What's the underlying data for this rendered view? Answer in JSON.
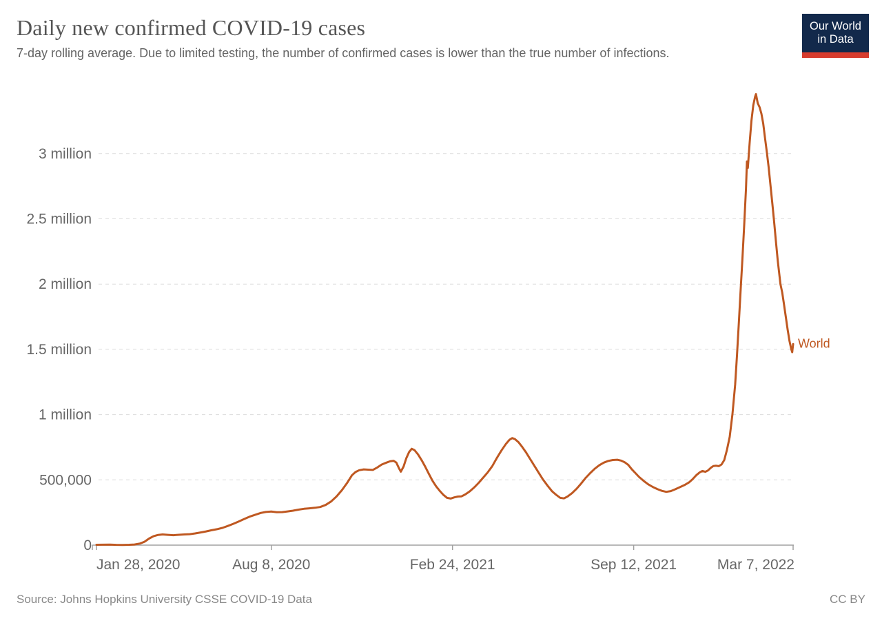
{
  "header": {
    "title": "Daily new confirmed COVID-19 cases",
    "subtitle": "7-day rolling average. Due to limited testing, the number of confirmed cases is lower than the true number of infections."
  },
  "logo": {
    "line1": "Our World",
    "line2": "in Data",
    "navy": "#12294b",
    "red": "#d73c2e"
  },
  "footer": {
    "source": "Source: Johns Hopkins University CSSE COVID-19 Data",
    "license": "CC BY"
  },
  "chart_data": {
    "type": "line",
    "title": "Daily new confirmed COVID-19 cases",
    "subtitle": "7-day rolling average",
    "xlabel": "",
    "ylabel": "",
    "grid": "dashed horizontal",
    "legend_position": "end-of-line",
    "x_domain": [
      "2020-01-28",
      "2022-03-07"
    ],
    "y_range": [
      0,
      3500000
    ],
    "x_ticks": [
      {
        "date": "2020-01-28",
        "label": "Jan 28, 2020"
      },
      {
        "date": "2020-08-08",
        "label": "Aug 8, 2020"
      },
      {
        "date": "2021-02-24",
        "label": "Feb 24, 2021"
      },
      {
        "date": "2021-09-12",
        "label": "Sep 12, 2021"
      },
      {
        "date": "2022-03-07",
        "label": "Mar 7, 2022"
      }
    ],
    "y_ticks": [
      {
        "value": 0,
        "label": "0"
      },
      {
        "value": 500000,
        "label": "500,000"
      },
      {
        "value": 1000000,
        "label": "1 million"
      },
      {
        "value": 1500000,
        "label": "1.5 million"
      },
      {
        "value": 2000000,
        "label": "2 million"
      },
      {
        "value": 2500000,
        "label": "2.5 million"
      },
      {
        "value": 3000000,
        "label": "3 million"
      }
    ],
    "series": [
      {
        "name": "World",
        "color": "#bf5821",
        "points": [
          [
            "2020-01-28",
            2600
          ],
          [
            "2020-02-04",
            3400
          ],
          [
            "2020-02-12",
            4200
          ],
          [
            "2020-02-19",
            2300
          ],
          [
            "2020-02-26",
            1800
          ],
          [
            "2020-03-04",
            2600
          ],
          [
            "2020-03-10",
            5000
          ],
          [
            "2020-03-16",
            12000
          ],
          [
            "2020-03-21",
            26000
          ],
          [
            "2020-03-26",
            50000
          ],
          [
            "2020-03-31",
            68000
          ],
          [
            "2020-04-05",
            78000
          ],
          [
            "2020-04-10",
            82000
          ],
          [
            "2020-04-16",
            78500
          ],
          [
            "2020-04-22",
            76000
          ],
          [
            "2020-04-28",
            79000
          ],
          [
            "2020-05-04",
            82000
          ],
          [
            "2020-05-10",
            84000
          ],
          [
            "2020-05-16",
            90000
          ],
          [
            "2020-05-22",
            97000
          ],
          [
            "2020-05-28",
            105000
          ],
          [
            "2020-06-03",
            114000
          ],
          [
            "2020-06-09",
            122000
          ],
          [
            "2020-06-15",
            132000
          ],
          [
            "2020-06-21",
            147000
          ],
          [
            "2020-06-27",
            163000
          ],
          [
            "2020-07-03",
            181000
          ],
          [
            "2020-07-09",
            200000
          ],
          [
            "2020-07-15",
            218000
          ],
          [
            "2020-07-21",
            232000
          ],
          [
            "2020-07-27",
            246000
          ],
          [
            "2020-08-02",
            254000
          ],
          [
            "2020-08-08",
            257000
          ],
          [
            "2020-08-14",
            252000
          ],
          [
            "2020-08-20",
            253000
          ],
          [
            "2020-08-26",
            258000
          ],
          [
            "2020-09-01",
            264000
          ],
          [
            "2020-09-07",
            272000
          ],
          [
            "2020-09-13",
            278000
          ],
          [
            "2020-09-19",
            282000
          ],
          [
            "2020-09-25",
            286000
          ],
          [
            "2020-10-01",
            292000
          ],
          [
            "2020-10-07",
            308000
          ],
          [
            "2020-10-13",
            334000
          ],
          [
            "2020-10-19",
            373000
          ],
          [
            "2020-10-25",
            422000
          ],
          [
            "2020-10-31",
            480000
          ],
          [
            "2020-11-05",
            535000
          ],
          [
            "2020-11-09",
            560000
          ],
          [
            "2020-11-13",
            574000
          ],
          [
            "2020-11-18",
            580000
          ],
          [
            "2020-11-23",
            578000
          ],
          [
            "2020-11-28",
            576000
          ],
          [
            "2020-12-03",
            595000
          ],
          [
            "2020-12-08",
            618000
          ],
          [
            "2020-12-13",
            632000
          ],
          [
            "2020-12-17",
            642000
          ],
          [
            "2020-12-21",
            646000
          ],
          [
            "2020-12-24",
            632000
          ],
          [
            "2020-12-27",
            588000
          ],
          [
            "2020-12-29",
            563000
          ],
          [
            "2021-01-01",
            602000
          ],
          [
            "2021-01-04",
            665000
          ],
          [
            "2021-01-07",
            712000
          ],
          [
            "2021-01-10",
            738000
          ],
          [
            "2021-01-13",
            728000
          ],
          [
            "2021-01-17",
            695000
          ],
          [
            "2021-01-21",
            650000
          ],
          [
            "2021-01-25",
            600000
          ],
          [
            "2021-01-29",
            545000
          ],
          [
            "2021-02-02",
            492000
          ],
          [
            "2021-02-06",
            450000
          ],
          [
            "2021-02-10",
            415000
          ],
          [
            "2021-02-14",
            385000
          ],
          [
            "2021-02-18",
            362000
          ],
          [
            "2021-02-22",
            357000
          ],
          [
            "2021-02-26",
            366000
          ],
          [
            "2021-03-02",
            372000
          ],
          [
            "2021-03-06",
            374000
          ],
          [
            "2021-03-10",
            388000
          ],
          [
            "2021-03-15",
            412000
          ],
          [
            "2021-03-20",
            442000
          ],
          [
            "2021-03-25",
            478000
          ],
          [
            "2021-03-30",
            518000
          ],
          [
            "2021-04-04",
            558000
          ],
          [
            "2021-04-09",
            606000
          ],
          [
            "2021-04-14",
            668000
          ],
          [
            "2021-04-19",
            725000
          ],
          [
            "2021-04-24",
            775000
          ],
          [
            "2021-04-28",
            808000
          ],
          [
            "2021-05-01",
            820000
          ],
          [
            "2021-05-04",
            812000
          ],
          [
            "2021-05-08",
            788000
          ],
          [
            "2021-05-12",
            752000
          ],
          [
            "2021-05-16",
            712000
          ],
          [
            "2021-05-20",
            668000
          ],
          [
            "2021-05-25",
            612000
          ],
          [
            "2021-05-30",
            556000
          ],
          [
            "2021-06-04",
            502000
          ],
          [
            "2021-06-09",
            455000
          ],
          [
            "2021-06-14",
            412000
          ],
          [
            "2021-06-19",
            382000
          ],
          [
            "2021-06-23",
            362000
          ],
          [
            "2021-06-27",
            358000
          ],
          [
            "2021-07-01",
            372000
          ],
          [
            "2021-07-06",
            398000
          ],
          [
            "2021-07-11",
            432000
          ],
          [
            "2021-07-16",
            472000
          ],
          [
            "2021-07-21",
            515000
          ],
          [
            "2021-07-26",
            552000
          ],
          [
            "2021-07-31",
            585000
          ],
          [
            "2021-08-05",
            612000
          ],
          [
            "2021-08-10",
            632000
          ],
          [
            "2021-08-15",
            645000
          ],
          [
            "2021-08-20",
            652000
          ],
          [
            "2021-08-25",
            654000
          ],
          [
            "2021-08-29",
            648000
          ],
          [
            "2021-09-02",
            635000
          ],
          [
            "2021-09-06",
            615000
          ],
          [
            "2021-09-10",
            580000
          ],
          [
            "2021-09-14",
            552000
          ],
          [
            "2021-09-18",
            522000
          ],
          [
            "2021-09-23",
            492000
          ],
          [
            "2021-09-28",
            466000
          ],
          [
            "2021-10-03",
            446000
          ],
          [
            "2021-10-08",
            430000
          ],
          [
            "2021-10-13",
            416000
          ],
          [
            "2021-10-18",
            408000
          ],
          [
            "2021-10-23",
            414000
          ],
          [
            "2021-10-28",
            428000
          ],
          [
            "2021-11-02",
            444000
          ],
          [
            "2021-11-07",
            460000
          ],
          [
            "2021-11-12",
            480000
          ],
          [
            "2021-11-16",
            505000
          ],
          [
            "2021-11-20",
            535000
          ],
          [
            "2021-11-24",
            558000
          ],
          [
            "2021-11-27",
            568000
          ],
          [
            "2021-11-30",
            562000
          ],
          [
            "2021-12-03",
            572000
          ],
          [
            "2021-12-06",
            592000
          ],
          [
            "2021-12-09",
            606000
          ],
          [
            "2021-12-12",
            608000
          ],
          [
            "2021-12-15",
            605000
          ],
          [
            "2021-12-18",
            618000
          ],
          [
            "2021-12-21",
            652000
          ],
          [
            "2021-12-24",
            730000
          ],
          [
            "2021-12-27",
            830000
          ],
          [
            "2021-12-30",
            1000000
          ],
          [
            "2022-01-02",
            1230000
          ],
          [
            "2022-01-04",
            1450000
          ],
          [
            "2022-01-06",
            1690000
          ],
          [
            "2022-01-08",
            1940000
          ],
          [
            "2022-01-10",
            2190000
          ],
          [
            "2022-01-12",
            2450000
          ],
          [
            "2022-01-14",
            2730000
          ],
          [
            "2022-01-15",
            2940000
          ],
          [
            "2022-01-16",
            2890000
          ],
          [
            "2022-01-18",
            3080000
          ],
          [
            "2022-01-20",
            3250000
          ],
          [
            "2022-01-22",
            3370000
          ],
          [
            "2022-01-24",
            3435000
          ],
          [
            "2022-01-25",
            3455000
          ],
          [
            "2022-01-26",
            3420000
          ],
          [
            "2022-01-27",
            3385000
          ],
          [
            "2022-01-29",
            3355000
          ],
          [
            "2022-01-31",
            3305000
          ],
          [
            "2022-02-02",
            3230000
          ],
          [
            "2022-02-04",
            3120000
          ],
          [
            "2022-02-06",
            3010000
          ],
          [
            "2022-02-08",
            2895000
          ],
          [
            "2022-02-10",
            2760000
          ],
          [
            "2022-02-12",
            2620000
          ],
          [
            "2022-02-14",
            2480000
          ],
          [
            "2022-02-16",
            2330000
          ],
          [
            "2022-02-18",
            2180000
          ],
          [
            "2022-02-20",
            2060000
          ],
          [
            "2022-02-21",
            2000000
          ],
          [
            "2022-02-23",
            1935000
          ],
          [
            "2022-02-25",
            1840000
          ],
          [
            "2022-02-27",
            1745000
          ],
          [
            "2022-03-01",
            1650000
          ],
          [
            "2022-03-03",
            1565000
          ],
          [
            "2022-03-05",
            1500000
          ],
          [
            "2022-03-06",
            1478000
          ],
          [
            "2022-03-07",
            1540000
          ]
        ]
      }
    ]
  }
}
